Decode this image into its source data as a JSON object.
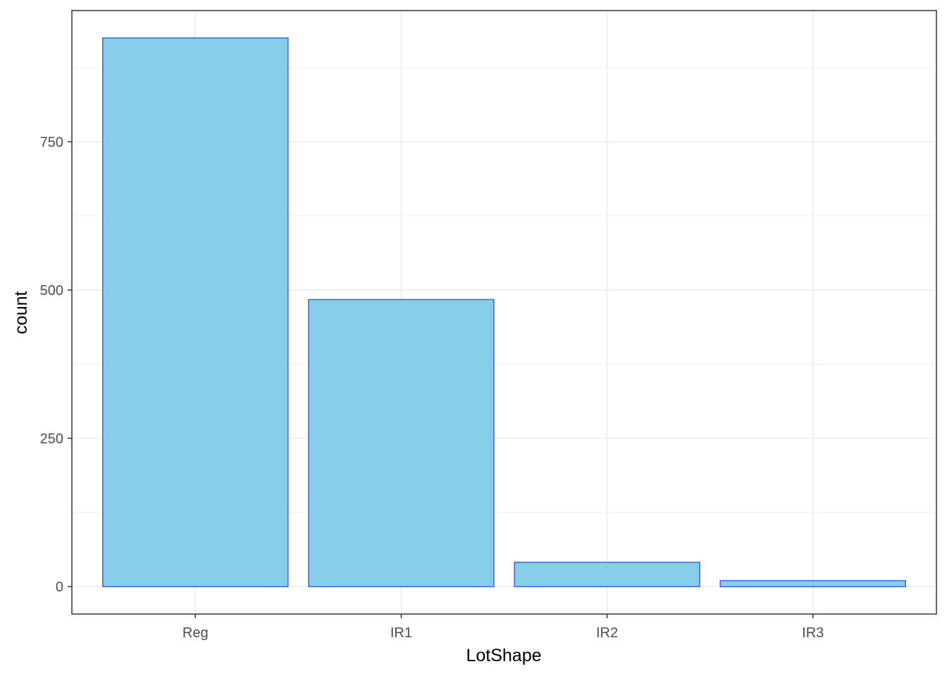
{
  "chart_data": {
    "type": "bar",
    "categories": [
      "Reg",
      "IR1",
      "IR2",
      "IR3"
    ],
    "values": [
      925,
      484,
      41,
      10
    ],
    "title": "",
    "xlabel": "LotShape",
    "ylabel": "count",
    "ylim": [
      -46.25,
      971.25
    ],
    "yticks": [
      0,
      250,
      500,
      750
    ],
    "ytick_labels": [
      "0",
      "250",
      "500",
      "750"
    ],
    "grid": true,
    "colors": {
      "bar_fill": "#87CEEB",
      "bar_stroke": "#4169E1",
      "grid": "#ebebeb",
      "panel_border": "#333333",
      "tick_text": "#4d4d4d"
    }
  }
}
